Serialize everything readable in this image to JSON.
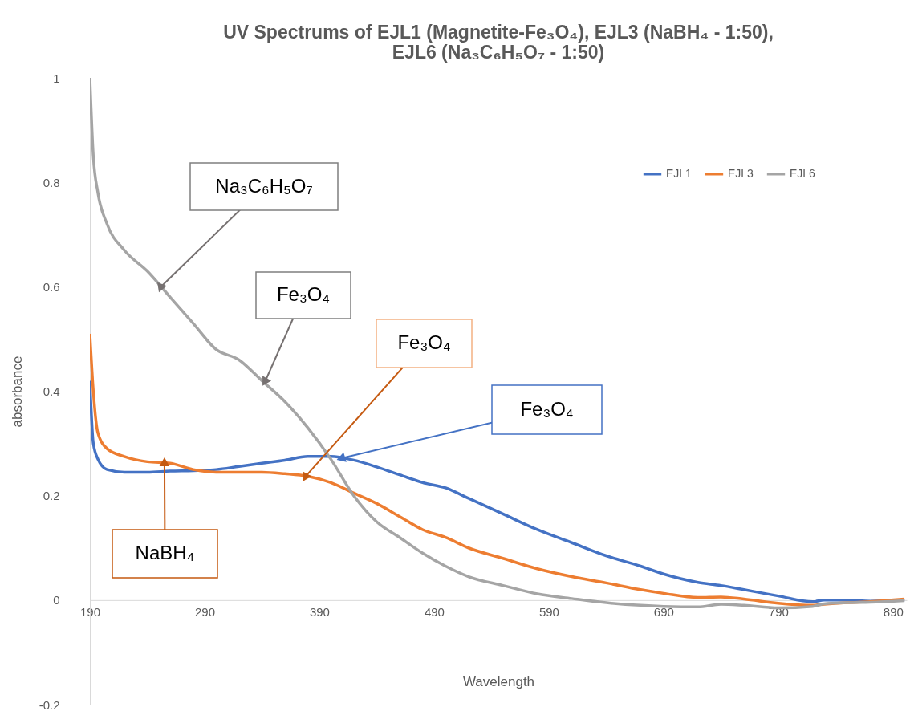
{
  "chart_data": {
    "type": "line",
    "title": [
      "UV Spectrums of EJL1 (Magnetite-Fe₃O₄), EJL3 (NaBH₄ - 1:50),",
      "EJL6 (Na₃C₆H₅O₇ - 1:50)"
    ],
    "xlabel": "Wavelength",
    "ylabel": "absorbance",
    "x": [
      190,
      193,
      197,
      205,
      220,
      240,
      260,
      280,
      300,
      320,
      340,
      360,
      380,
      400,
      420,
      440,
      460,
      480,
      500,
      520,
      550,
      580,
      610,
      640,
      670,
      690,
      720,
      740,
      760,
      790,
      820,
      830,
      850,
      870,
      900
    ],
    "series": [
      {
        "name": "EJL1",
        "color": "#4472c4",
        "values": [
          0.42,
          0.3,
          0.27,
          0.25,
          0.245,
          0.245,
          0.247,
          0.248,
          0.25,
          0.256,
          0.262,
          0.268,
          0.275,
          0.275,
          0.268,
          0.255,
          0.24,
          0.225,
          0.215,
          0.195,
          0.165,
          0.135,
          0.11,
          0.085,
          0.065,
          0.05,
          0.034,
          0.028,
          0.02,
          0.008,
          -0.003,
          0.0,
          0.0,
          -0.002,
          0.0
        ]
      },
      {
        "name": "EJL3",
        "color": "#ed7d31",
        "values": [
          0.51,
          0.4,
          0.32,
          0.29,
          0.275,
          0.265,
          0.262,
          0.25,
          0.245,
          0.245,
          0.245,
          0.242,
          0.237,
          0.225,
          0.205,
          0.185,
          0.16,
          0.135,
          0.12,
          0.1,
          0.08,
          0.06,
          0.045,
          0.033,
          0.02,
          0.013,
          0.005,
          0.006,
          0.002,
          -0.006,
          -0.01,
          -0.008,
          -0.005,
          -0.003,
          0.002
        ]
      },
      {
        "name": "EJL6",
        "color": "#a5a5a5",
        "values": [
          1.0,
          0.85,
          0.78,
          0.72,
          0.67,
          0.63,
          0.58,
          0.53,
          0.48,
          0.46,
          0.42,
          0.38,
          0.33,
          0.27,
          0.2,
          0.15,
          0.12,
          0.09,
          0.065,
          0.045,
          0.028,
          0.012,
          0.003,
          -0.005,
          -0.01,
          -0.012,
          -0.013,
          -0.008,
          -0.01,
          -0.015,
          -0.012,
          -0.007,
          -0.005,
          -0.004,
          -0.001
        ]
      }
    ],
    "xlim": [
      190,
      902
    ],
    "xticks": [
      190,
      290,
      390,
      490,
      590,
      690,
      790,
      890
    ],
    "ylim": [
      -0.2,
      1
    ],
    "yticks": [
      -0.2,
      0,
      0.2,
      0.4,
      0.6,
      0.8,
      1
    ],
    "grid": false,
    "legend": "top right",
    "annotations": [
      {
        "text": "Na₃C₆H₅O₇",
        "x": 252,
        "y": 0.6
      },
      {
        "text": "Fe₃O₄",
        "x": 343,
        "y": 0.42
      },
      {
        "text": "Fe₃O₄",
        "x": 378,
        "y": 0.237
      },
      {
        "text": "Fe₃O₄",
        "x": 410,
        "y": 0.272
      },
      {
        "text": "NaBH₄",
        "x": 255,
        "y": 0.262
      }
    ]
  }
}
